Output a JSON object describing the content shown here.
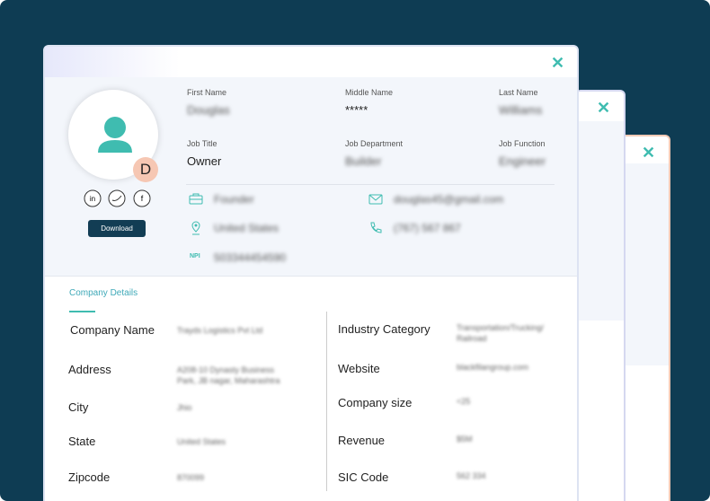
{
  "close_icon": "✕",
  "profile": {
    "initial": "D",
    "download": "Download",
    "fields": [
      {
        "label": "First Name",
        "value": "Douglas",
        "blurred": true
      },
      {
        "label": "Middle Name",
        "value": "*****",
        "blurred": false
      },
      {
        "label": "Last Name",
        "value": "Williams",
        "blurred": true
      },
      {
        "label": "Job Title",
        "value": "Owner",
        "blurred": false
      },
      {
        "label": "Job Department",
        "value": "Builder",
        "blurred": true
      },
      {
        "label": "Job Function",
        "value": "Engineer",
        "blurred": true
      }
    ],
    "contacts": [
      {
        "icon": "briefcase",
        "value": "Founder"
      },
      {
        "icon": "pin",
        "value": "United States"
      },
      {
        "icon": "npi",
        "label": "NPI",
        "value": "503344454590"
      },
      {
        "icon": "mail",
        "value": "douglas45@gmail.com"
      },
      {
        "icon": "phone",
        "value": "(767) 567 867"
      }
    ]
  },
  "company": {
    "title": "Company Details",
    "left": [
      {
        "label": "Company Name",
        "value": "Trayds Logistics Pvt Ltd"
      },
      {
        "label": "Address",
        "value": "A208-10 Dynasty Business Park, JB nagar, Maharashtra"
      },
      {
        "label": "City",
        "value": "Jhio"
      },
      {
        "label": "State",
        "value": "United States"
      },
      {
        "label": "Zipcode",
        "value": "870099"
      }
    ],
    "right": [
      {
        "label": "Industry Category",
        "value": "Transportation/Trucking/ Railroad"
      },
      {
        "label": "Website",
        "value": "blackfilangroup.com"
      },
      {
        "label": "Company size",
        "value": "<25"
      },
      {
        "label": "Revenue",
        "value": "$5M"
      },
      {
        "label": "SIC Code",
        "value": "562 334"
      }
    ]
  }
}
